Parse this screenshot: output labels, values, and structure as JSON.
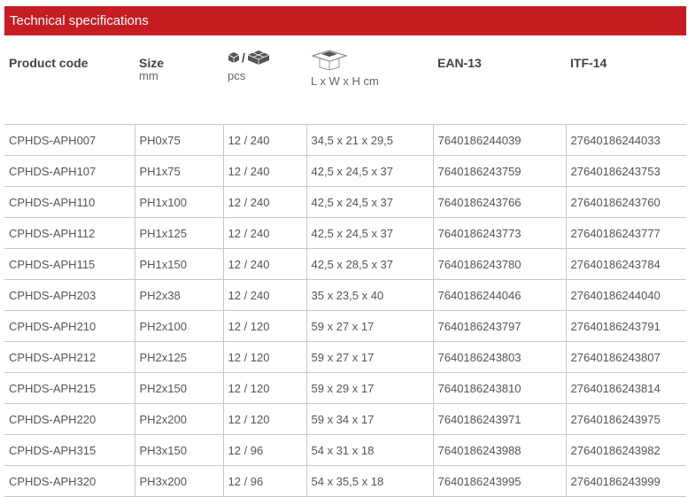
{
  "title": "Technical specifications",
  "colors": {
    "accent": "#c61d22"
  },
  "headers": [
    {
      "label": "Product code",
      "sub": ""
    },
    {
      "label": "Size",
      "sub": "mm"
    },
    {
      "label": "",
      "sub": "pcs",
      "icons": [
        "single-box-icon",
        "box-group-icon"
      ],
      "sep": "/"
    },
    {
      "label": "",
      "sub": "L x W x H cm",
      "icons": [
        "open-carton-icon"
      ]
    },
    {
      "label": "EAN-13",
      "sub": ""
    },
    {
      "label": "ITF-14",
      "sub": ""
    }
  ],
  "rows": [
    [
      "CPHDS-APH007",
      "PH0x75",
      "12 / 240",
      "34,5 x 21 x 29,5",
      "7640186244039",
      "27640186244033"
    ],
    [
      "CPHDS-APH107",
      "PH1x75",
      "12 / 240",
      "42,5 x 24,5 x 37",
      "7640186243759",
      "27640186243753"
    ],
    [
      "CPHDS-APH110",
      "PH1x100",
      "12 / 240",
      "42,5 x 24,5 x 37",
      "7640186243766",
      "27640186243760"
    ],
    [
      "CPHDS-APH112",
      "PH1x125",
      "12 / 240",
      "42,5 x 24,5 x 37",
      "7640186243773",
      "27640186243777"
    ],
    [
      "CPHDS-APH115",
      "PH1x150",
      "12 / 240",
      "42,5 x 28,5 x 37",
      "7640186243780",
      "27640186243784"
    ],
    [
      "CPHDS-APH203",
      "PH2x38",
      "12 / 240",
      "35 x 23,5 x 40",
      "7640186244046",
      "27640186244040"
    ],
    [
      "CPHDS-APH210",
      "PH2x100",
      "12 / 120",
      "59 x 27 x 17",
      "7640186243797",
      "27640186243791"
    ],
    [
      "CPHDS-APH212",
      "PH2x125",
      "12 / 120",
      "59 x 27 x 17",
      "7640186243803",
      "27640186243807"
    ],
    [
      "CPHDS-APH215",
      "PH2x150",
      "12 / 120",
      "59 x 29 x 17",
      "7640186243810",
      "27640186243814"
    ],
    [
      "CPHDS-APH220",
      "PH2x200",
      "12 / 120",
      "59 x 34 x 17",
      "7640186243971",
      "27640186243975"
    ],
    [
      "CPHDS-APH315",
      "PH3x150",
      "12 / 96",
      "54 x 31 x 18",
      "7640186243988",
      "27640186243982"
    ],
    [
      "CPHDS-APH320",
      "PH3x200",
      "12 / 96",
      "54 x 35,5 x 18",
      "7640186243995",
      "27640186243999"
    ]
  ]
}
